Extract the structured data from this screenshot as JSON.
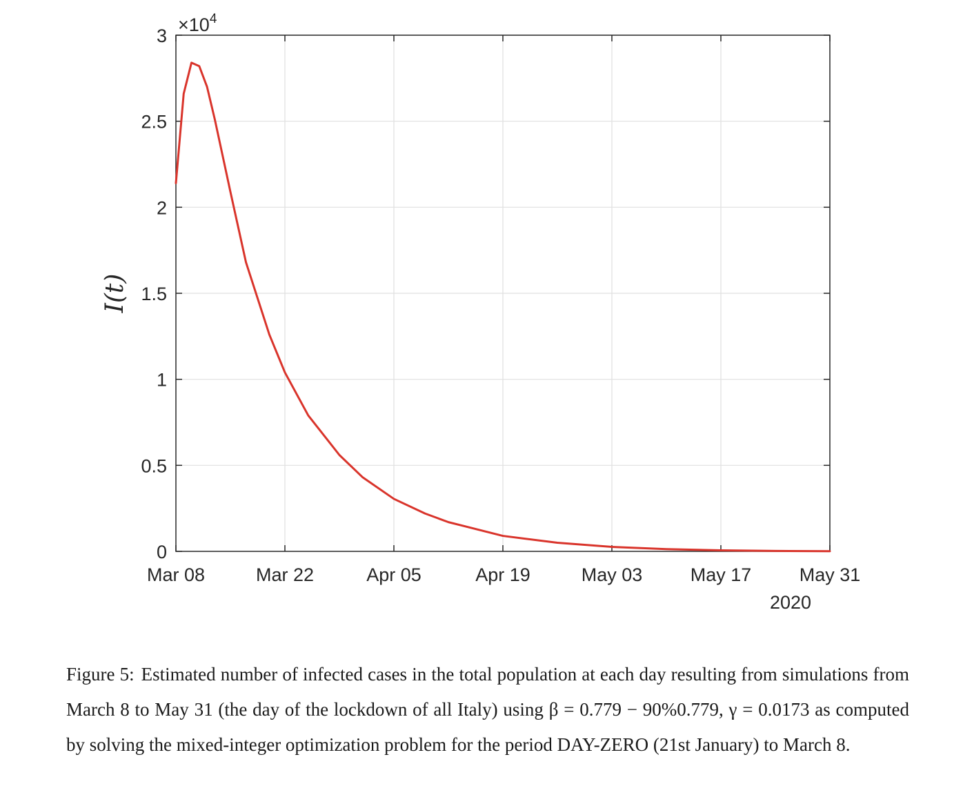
{
  "chart_data": {
    "type": "line",
    "title": "",
    "xlabel": "",
    "ylabel": "I(t)",
    "y_multiplier": "10^4",
    "y_exponent_base": "10",
    "y_exponent_power": "4",
    "xlim": [
      "2020-03-08",
      "2020-05-31"
    ],
    "ylim": [
      0,
      30000
    ],
    "x_ticks": [
      "Mar 08",
      "Mar 22",
      "Apr 05",
      "Apr 19",
      "May 03",
      "May 17",
      "May 31"
    ],
    "x_secondary_label": "2020",
    "y_ticks": [
      {
        "value": 0,
        "label": "0"
      },
      {
        "value": 5000,
        "label": "0.5"
      },
      {
        "value": 10000,
        "label": "1"
      },
      {
        "value": 15000,
        "label": "1.5"
      },
      {
        "value": 20000,
        "label": "2"
      },
      {
        "value": 25000,
        "label": "2.5"
      },
      {
        "value": 30000,
        "label": "3"
      }
    ],
    "grid": true,
    "series": [
      {
        "color": "#d9342b",
        "points": [
          {
            "x": "2020-03-08",
            "y": 21400
          },
          {
            "x": "2020-03-09",
            "y": 26600
          },
          {
            "x": "2020-03-10",
            "y": 28400
          },
          {
            "x": "2020-03-11",
            "y": 28200
          },
          {
            "x": "2020-03-12",
            "y": 27000
          },
          {
            "x": "2020-03-13",
            "y": 25100
          },
          {
            "x": "2020-03-15",
            "y": 20900
          },
          {
            "x": "2020-03-17",
            "y": 16800
          },
          {
            "x": "2020-03-20",
            "y": 12600
          },
          {
            "x": "2020-03-22",
            "y": 10400
          },
          {
            "x": "2020-03-25",
            "y": 7900
          },
          {
            "x": "2020-03-29",
            "y": 5600
          },
          {
            "x": "2020-04-01",
            "y": 4300
          },
          {
            "x": "2020-04-05",
            "y": 3050
          },
          {
            "x": "2020-04-09",
            "y": 2200
          },
          {
            "x": "2020-04-12",
            "y": 1700
          },
          {
            "x": "2020-04-19",
            "y": 900
          },
          {
            "x": "2020-04-26",
            "y": 500
          },
          {
            "x": "2020-05-03",
            "y": 260
          },
          {
            "x": "2020-05-10",
            "y": 130
          },
          {
            "x": "2020-05-17",
            "y": 60
          },
          {
            "x": "2020-05-24",
            "y": 25
          },
          {
            "x": "2020-05-31",
            "y": 10
          }
        ]
      }
    ]
  },
  "caption": {
    "label": "Figure 5:",
    "text": "Estimated number of infected cases in the total population at each day resulting from simulations from March 8 to May 31 (the day of the lockdown of all Italy) using β = 0.779 − 90%0.779, γ = 0.0173 as computed by solving the mixed-integer optimization problem for the period DAY-ZERO (21st January) to March 8."
  }
}
